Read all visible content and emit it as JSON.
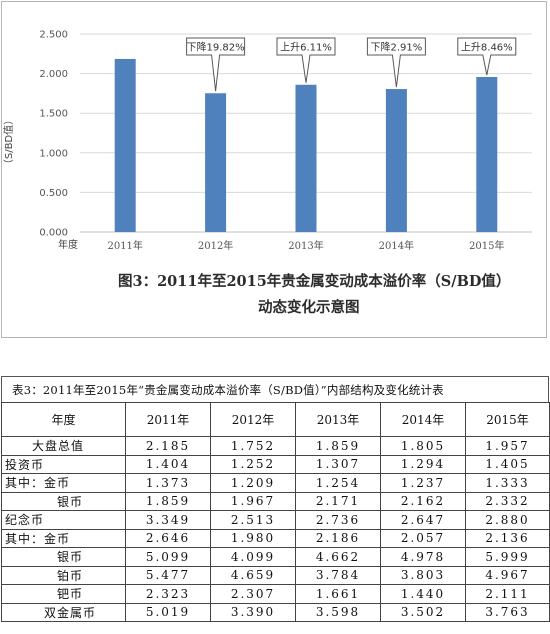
{
  "chart_data": {
    "type": "bar",
    "title": "图3：2011年至2015年贵金属变动成本溢价率（S/BD值）动态变化示意图",
    "title_lines": [
      "图3：2011年至2015年贵金属变动成本溢价率（S/BD值）",
      "动态变化示意图"
    ],
    "xlabel": "年度",
    "ylabel": "（S/BD值）",
    "categories": [
      "2011年",
      "2012年",
      "2013年",
      "2014年",
      "2015年"
    ],
    "values": [
      2.185,
      1.752,
      1.859,
      1.805,
      1.957
    ],
    "ylim": [
      0,
      2.5
    ],
    "yticks": [
      "0.000",
      "0.500",
      "1.000",
      "1.500",
      "2.000",
      "2.500"
    ],
    "annotations": [
      "",
      "下降19.82%",
      "上升6.11%",
      "下降2.91%",
      "上升8.46%"
    ],
    "bar_color": "#4f81bd",
    "grid": "horizontal",
    "legend": "none"
  },
  "table": {
    "caption": "表3：2011年至2015年“贵金属变动成本溢价率（S/BD值）”内部结构及变化统计表",
    "headers": [
      "年度",
      "2011年",
      "2012年",
      "2013年",
      "2014年",
      "2015年"
    ],
    "rows": [
      {
        "label": "大盘总值",
        "indent": "center",
        "values": [
          "2.185",
          "1.752",
          "1.859",
          "1.805",
          "1.957"
        ]
      },
      {
        "label": "投资币",
        "indent": "none",
        "values": [
          "1.404",
          "1.252",
          "1.307",
          "1.294",
          "1.405"
        ]
      },
      {
        "label": "其中：金币",
        "indent": "none",
        "values": [
          "1.373",
          "1.209",
          "1.254",
          "1.237",
          "1.333"
        ]
      },
      {
        "label": "银币",
        "indent": "sub",
        "values": [
          "1.859",
          "1.967",
          "2.171",
          "2.162",
          "2.332"
        ]
      },
      {
        "label": "纪念币",
        "indent": "none",
        "values": [
          "3.349",
          "2.513",
          "2.736",
          "2.647",
          "2.880"
        ]
      },
      {
        "label": "其中：金币",
        "indent": "none",
        "values": [
          "2.646",
          "1.980",
          "2.186",
          "2.057",
          "2.136"
        ]
      },
      {
        "label": "银币",
        "indent": "sub",
        "values": [
          "5.099",
          "4.099",
          "4.662",
          "4.978",
          "5.999"
        ]
      },
      {
        "label": "铂币",
        "indent": "sub",
        "values": [
          "5.477",
          "4.659",
          "3.784",
          "3.803",
          "4.967"
        ]
      },
      {
        "label": "钯币",
        "indent": "sub",
        "values": [
          "2.323",
          "2.307",
          "1.661",
          "1.440",
          "2.111"
        ]
      },
      {
        "label": "双金属币",
        "indent": "sub2",
        "values": [
          "5.019",
          "3.390",
          "3.598",
          "3.502",
          "3.763"
        ]
      }
    ]
  }
}
